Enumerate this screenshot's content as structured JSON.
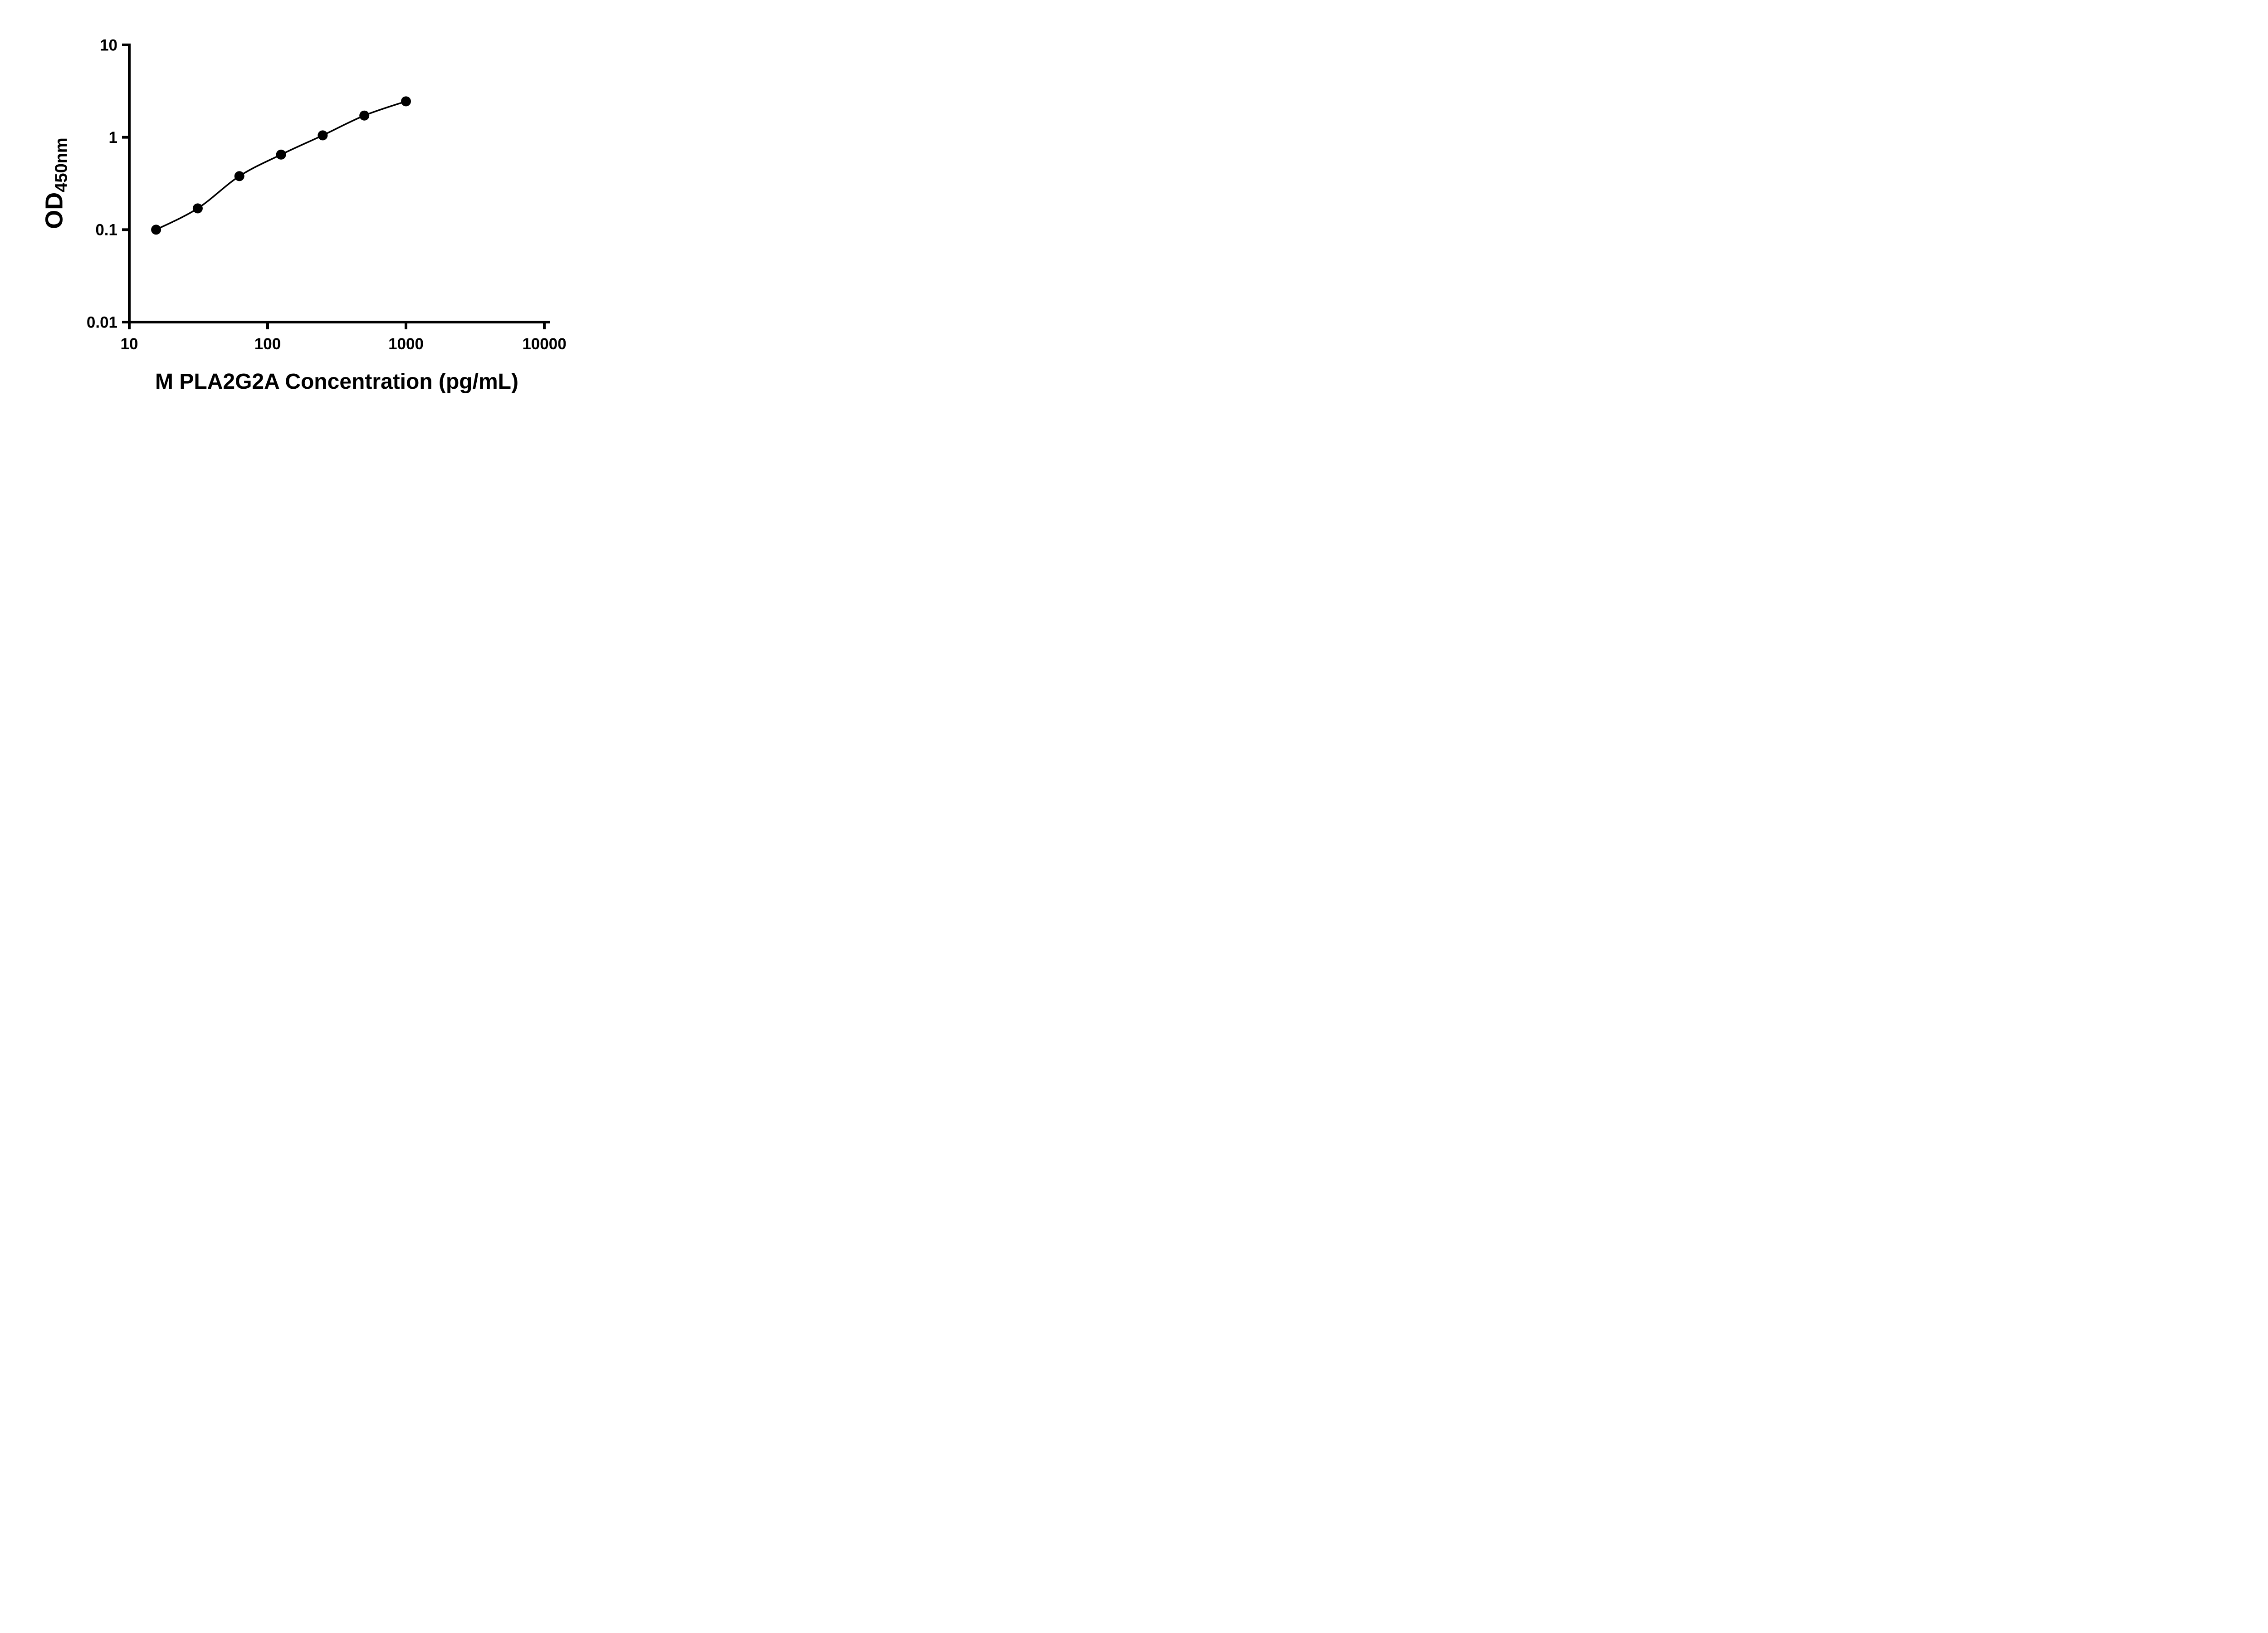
{
  "figure": {
    "background": "#ffffff"
  },
  "colors": {
    "axis": "#000000",
    "marker": "#000000",
    "curve": "#000000",
    "text": "#000000",
    "background": "#ffffff"
  },
  "chart_data": {
    "type": "scatter",
    "title": "",
    "xlabel": "M PLA2G2A Concentration (pg/mL)",
    "ylabel": "OD450nm",
    "ylabel_parts": {
      "main": "OD",
      "sub": "450nm"
    },
    "x_scale": "log",
    "y_scale": "log",
    "xlim": [
      10,
      10000
    ],
    "ylim": [
      0.01,
      10
    ],
    "x_ticks": [
      {
        "value": 10,
        "label": "10"
      },
      {
        "value": 100,
        "label": "100"
      },
      {
        "value": 1000,
        "label": "1000"
      },
      {
        "value": 10000,
        "label": "10000"
      }
    ],
    "y_ticks": [
      {
        "value": 0.01,
        "label": "0.01"
      },
      {
        "value": 0.1,
        "label": "0.1"
      },
      {
        "value": 1,
        "label": "1"
      },
      {
        "value": 10,
        "label": "10"
      }
    ],
    "grid": false,
    "legend": "none",
    "x": [
      15.625,
      31.25,
      62.5,
      125,
      250,
      500,
      1000
    ],
    "series": [
      {
        "marker": "filled-circle",
        "color": "#000000",
        "line": "smooth-fit",
        "values": [
          0.1,
          0.17,
          0.38,
          0.65,
          1.05,
          1.72,
          2.45
        ]
      }
    ]
  }
}
